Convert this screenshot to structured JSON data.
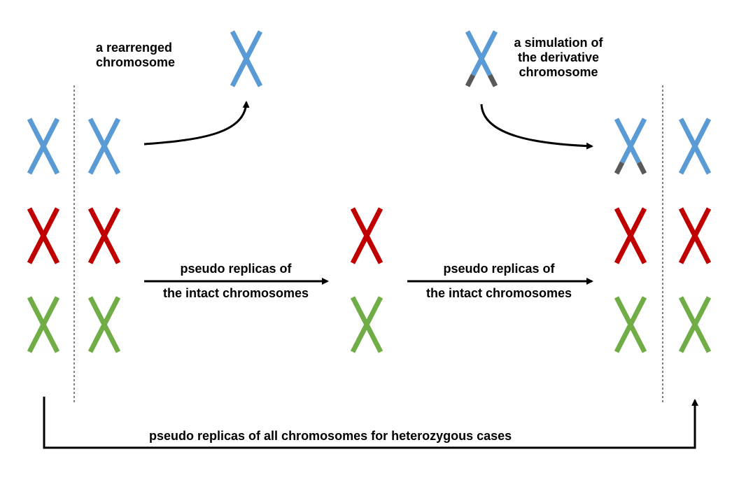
{
  "colors": {
    "blue": "#5b9bd5",
    "red": "#c00000",
    "green": "#70ad47",
    "tip": "#595959",
    "line": "#000000"
  },
  "labels": {
    "rearranged_line1": "a rearrenged",
    "rearranged_line2": "chromosome",
    "simulation_line1": "a simulation of",
    "simulation_line2": "the derivative",
    "simulation_line3": "chromosome",
    "intact_left_line1": "pseudo replicas of",
    "intact_left_line2": "the intact chromosomes",
    "intact_right_line1": "pseudo replicas of",
    "intact_right_line2": "the intact chromosomes",
    "heterozygous": "pseudo replicas of all chromosomes for heterozygous cases"
  },
  "chromosomes": [
    {
      "id": "left-1-blue",
      "color": "blue"
    },
    {
      "id": "left-2-blue",
      "color": "blue"
    },
    {
      "id": "left-1-red",
      "color": "red"
    },
    {
      "id": "left-2-red",
      "color": "red"
    },
    {
      "id": "left-1-green",
      "color": "green"
    },
    {
      "id": "left-2-green",
      "color": "green"
    },
    {
      "id": "rearranged-blue",
      "color": "blue"
    },
    {
      "id": "derivative-blue",
      "color": "blue",
      "derivative": true
    },
    {
      "id": "middle-red",
      "color": "red"
    },
    {
      "id": "middle-green",
      "color": "green"
    },
    {
      "id": "right-1-blue",
      "color": "blue",
      "derivative": true
    },
    {
      "id": "right-2-blue",
      "color": "blue"
    },
    {
      "id": "right-1-red",
      "color": "red"
    },
    {
      "id": "right-2-red",
      "color": "red"
    },
    {
      "id": "right-1-green",
      "color": "green"
    },
    {
      "id": "right-2-green",
      "color": "green"
    }
  ]
}
